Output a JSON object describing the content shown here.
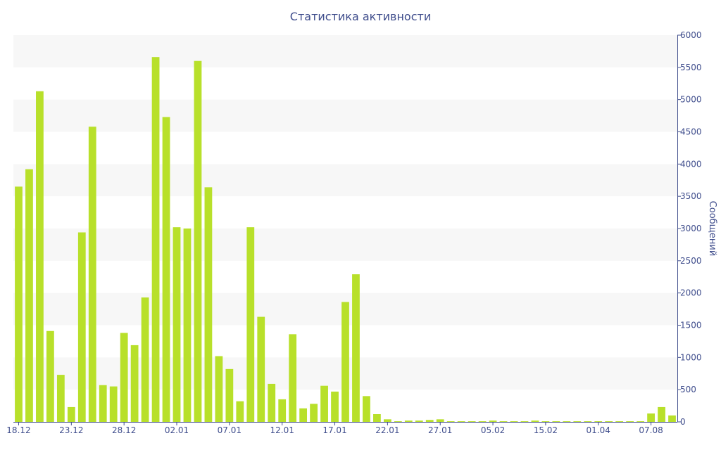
{
  "chart_data": {
    "type": "bar",
    "title": "Статистика активности",
    "ylabel": "Сообщений",
    "ylim": [
      0,
      6000
    ],
    "yticks": [
      0,
      500,
      1000,
      1500,
      2000,
      2500,
      3000,
      3500,
      4000,
      4500,
      5000,
      5500,
      6000
    ],
    "y_axis_position": "right",
    "grid": "alternating horizontal bands",
    "bar_color": "#b8e02a",
    "x_tick_labels": [
      "18.12",
      "23.12",
      "28.12",
      "02.01",
      "07.01",
      "12.01",
      "17.01",
      "22.01",
      "27.01",
      "05.02",
      "15.02",
      "01.04",
      "07.08"
    ],
    "x_tick_indices": [
      0,
      5,
      10,
      15,
      20,
      25,
      30,
      35,
      40,
      45,
      50,
      55,
      60
    ],
    "values": [
      3650,
      3920,
      5130,
      1410,
      730,
      230,
      2940,
      4580,
      570,
      550,
      1380,
      1190,
      1930,
      5660,
      4730,
      3020,
      3000,
      5600,
      3640,
      1020,
      820,
      320,
      3020,
      1630,
      590,
      350,
      1360,
      210,
      280,
      560,
      470,
      1860,
      2290,
      400,
      120,
      40,
      10,
      20,
      20,
      30,
      40,
      10,
      10,
      10,
      10,
      20,
      10,
      10,
      10,
      20,
      10,
      10,
      10,
      10,
      10,
      10,
      10,
      10,
      10,
      10,
      130,
      230,
      100
    ]
  }
}
